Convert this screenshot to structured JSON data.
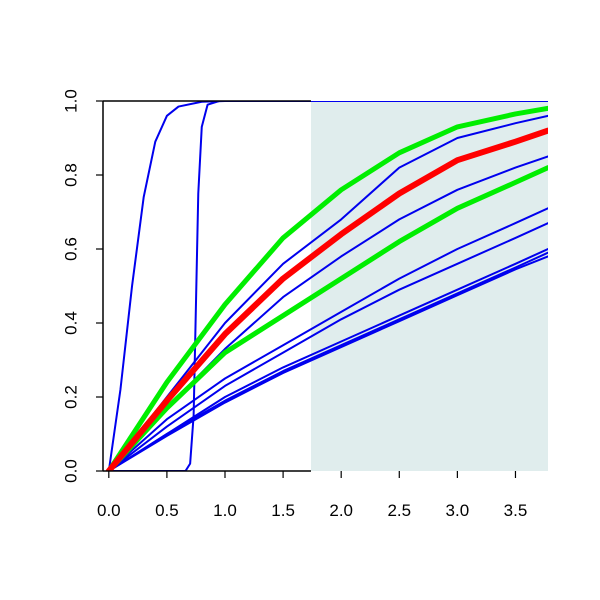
{
  "chart_data": {
    "type": "line",
    "title": "",
    "xlabel": "",
    "ylabel": "",
    "xlim": [
      -0.05,
      3.78
    ],
    "ylim": [
      0.0,
      1.0
    ],
    "x_ticks": [
      "0.0",
      "0.5",
      "1.0",
      "1.5",
      "2.0",
      "2.5",
      "3.0",
      "3.5"
    ],
    "y_ticks": [
      "0.0",
      "0.2",
      "0.4",
      "0.6",
      "0.8",
      "1.0"
    ],
    "shaded_region": {
      "x_start": 1.74,
      "x_end": 3.78,
      "color": "#e0eded"
    },
    "colors": {
      "blue": "#0000ee",
      "red": "#ff0000",
      "green": "#00ee00",
      "axis": "#000000"
    },
    "series": [
      {
        "color": "#0000ee",
        "points": [
          [
            0.0,
            0.0
          ],
          [
            0.1,
            0.22
          ],
          [
            0.2,
            0.5
          ],
          [
            0.3,
            0.74
          ],
          [
            0.4,
            0.89
          ],
          [
            0.5,
            0.96
          ],
          [
            0.6,
            0.985
          ],
          [
            0.8,
            0.998
          ],
          [
            1.0,
            1.0
          ],
          [
            3.78,
            1.0
          ]
        ]
      },
      {
        "color": "#0000ee",
        "points": [
          [
            0.0,
            0.0
          ],
          [
            0.66,
            0.0
          ],
          [
            0.7,
            0.02
          ],
          [
            0.73,
            0.15
          ],
          [
            0.75,
            0.45
          ],
          [
            0.77,
            0.75
          ],
          [
            0.8,
            0.93
          ],
          [
            0.85,
            0.99
          ],
          [
            0.95,
            1.0
          ],
          [
            3.78,
            1.0
          ]
        ]
      },
      {
        "color": "#0000ee",
        "points": [
          [
            0.0,
            0.0
          ],
          [
            0.5,
            0.2
          ],
          [
            1.0,
            0.4
          ],
          [
            1.5,
            0.56
          ],
          [
            2.0,
            0.68
          ],
          [
            2.5,
            0.82
          ],
          [
            3.0,
            0.9
          ],
          [
            3.5,
            0.94
          ],
          [
            3.78,
            0.96
          ]
        ]
      },
      {
        "color": "#0000ee",
        "points": [
          [
            0.0,
            0.0
          ],
          [
            0.5,
            0.17
          ],
          [
            1.0,
            0.33
          ],
          [
            1.5,
            0.47
          ],
          [
            2.0,
            0.58
          ],
          [
            2.5,
            0.68
          ],
          [
            3.0,
            0.76
          ],
          [
            3.5,
            0.82
          ],
          [
            3.78,
            0.85
          ]
        ]
      },
      {
        "color": "#0000ee",
        "points": [
          [
            0.0,
            0.0
          ],
          [
            0.5,
            0.14
          ],
          [
            1.0,
            0.25
          ],
          [
            1.5,
            0.34
          ],
          [
            2.0,
            0.43
          ],
          [
            2.5,
            0.52
          ],
          [
            3.0,
            0.6
          ],
          [
            3.5,
            0.67
          ],
          [
            3.78,
            0.71
          ]
        ]
      },
      {
        "color": "#0000ee",
        "points": [
          [
            0.0,
            0.0
          ],
          [
            0.5,
            0.12
          ],
          [
            1.0,
            0.23
          ],
          [
            1.5,
            0.32
          ],
          [
            2.0,
            0.41
          ],
          [
            2.5,
            0.49
          ],
          [
            3.0,
            0.56
          ],
          [
            3.5,
            0.63
          ],
          [
            3.78,
            0.67
          ]
        ]
      },
      {
        "color": "#0000ee",
        "points": [
          [
            0.0,
            0.0
          ],
          [
            0.5,
            0.1
          ],
          [
            1.0,
            0.2
          ],
          [
            1.5,
            0.28
          ],
          [
            2.0,
            0.35
          ],
          [
            2.5,
            0.42
          ],
          [
            3.0,
            0.49
          ],
          [
            3.5,
            0.56
          ],
          [
            3.78,
            0.6
          ]
        ]
      },
      {
        "color": "#0000ee",
        "points": [
          [
            0.0,
            0.0
          ],
          [
            0.5,
            0.1
          ],
          [
            1.0,
            0.19
          ],
          [
            1.5,
            0.27
          ],
          [
            2.0,
            0.34
          ],
          [
            2.5,
            0.41
          ],
          [
            3.0,
            0.48
          ],
          [
            3.5,
            0.55
          ],
          [
            3.78,
            0.59
          ]
        ]
      },
      {
        "color": "#0000ee",
        "points": [
          [
            0.0,
            0.0
          ],
          [
            0.5,
            0.095
          ],
          [
            1.0,
            0.185
          ],
          [
            1.5,
            0.265
          ],
          [
            2.0,
            0.335
          ],
          [
            2.5,
            0.405
          ],
          [
            3.0,
            0.475
          ],
          [
            3.5,
            0.545
          ],
          [
            3.78,
            0.58
          ]
        ]
      },
      {
        "color": "#00ee00",
        "width": 5,
        "points": [
          [
            0.0,
            0.0
          ],
          [
            0.5,
            0.24
          ],
          [
            1.0,
            0.45
          ],
          [
            1.5,
            0.63
          ],
          [
            2.0,
            0.76
          ],
          [
            2.5,
            0.86
          ],
          [
            3.0,
            0.93
          ],
          [
            3.5,
            0.965
          ],
          [
            3.78,
            0.98
          ]
        ]
      },
      {
        "color": "#00ee00",
        "width": 5,
        "points": [
          [
            0.0,
            0.0
          ],
          [
            0.5,
            0.17
          ],
          [
            1.0,
            0.32
          ],
          [
            1.5,
            0.42
          ],
          [
            2.0,
            0.52
          ],
          [
            2.5,
            0.62
          ],
          [
            3.0,
            0.71
          ],
          [
            3.5,
            0.78
          ],
          [
            3.78,
            0.82
          ]
        ]
      },
      {
        "color": "#ff0000",
        "width": 6,
        "points": [
          [
            0.0,
            0.0
          ],
          [
            0.5,
            0.19
          ],
          [
            1.0,
            0.37
          ],
          [
            1.5,
            0.52
          ],
          [
            2.0,
            0.64
          ],
          [
            2.5,
            0.75
          ],
          [
            3.0,
            0.84
          ],
          [
            3.5,
            0.89
          ],
          [
            3.78,
            0.92
          ]
        ]
      }
    ]
  }
}
